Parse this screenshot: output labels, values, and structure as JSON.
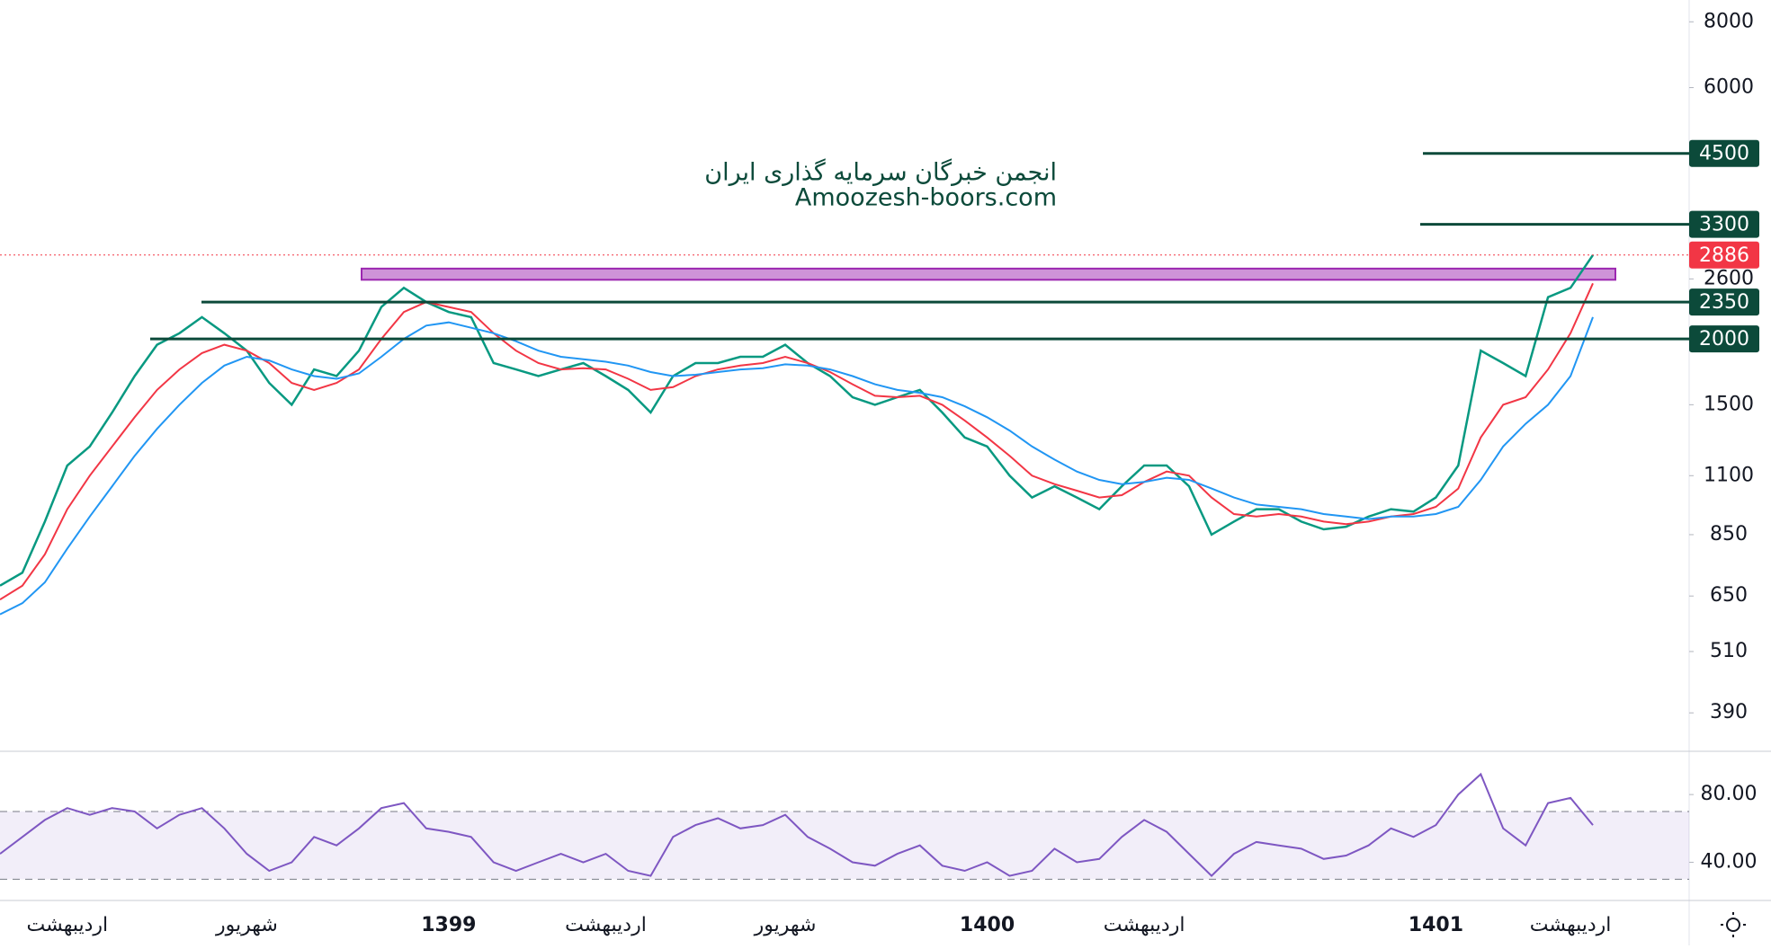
{
  "chart_data": [
    {
      "type": "line",
      "log_scale": true,
      "annotations": [
        "انجمن خبرگان سرمایه گذاری ایران",
        "Amoozesh-boors.com"
      ],
      "categories": [
        null,
        null,
        null,
        "اردیبهشت",
        null,
        null,
        null,
        null,
        null,
        null,
        null,
        "شهریور",
        null,
        null,
        null,
        null,
        null,
        null,
        null,
        null,
        "1399",
        null,
        null,
        null,
        null,
        null,
        null,
        "اردیبهشت",
        null,
        null,
        null,
        null,
        null,
        null,
        null,
        "شهریور",
        null,
        null,
        null,
        null,
        null,
        null,
        null,
        null,
        "1400",
        null,
        null,
        null,
        null,
        null,
        null,
        "اردیبهشت",
        null,
        null,
        null,
        null,
        null,
        null,
        null,
        null,
        null,
        null,
        null,
        null,
        "1401",
        null,
        null,
        null,
        null,
        null,
        "اردیبهشت",
        null
      ],
      "series": [
        {
          "color": "#089981",
          "values": [
            680,
            720,
            900,
            1150,
            1250,
            1450,
            1700,
            1950,
            2050,
            2200,
            2050,
            1900,
            1650,
            1500,
            1750,
            1700,
            1900,
            2300,
            2500,
            2350,
            2250,
            2200,
            1800,
            1750,
            1700,
            1750,
            1800,
            1700,
            1600,
            1450,
            1700,
            1800,
            1800,
            1850,
            1850,
            1950,
            1800,
            1700,
            1550,
            1500,
            1550,
            1600,
            1450,
            1300,
            1250,
            1100,
            1000,
            1050,
            1000,
            950,
            1050,
            1150,
            1150,
            1050,
            850,
            900,
            950,
            950,
            900,
            870,
            880,
            920,
            950,
            940,
            1000,
            1150,
            1900,
            1800,
            1700,
            2400,
            2500,
            2886
          ]
        },
        {
          "color": "#f23645",
          "values": [
            640,
            680,
            780,
            950,
            1100,
            1250,
            1420,
            1600,
            1750,
            1880,
            1950,
            1900,
            1800,
            1650,
            1600,
            1650,
            1750,
            2000,
            2250,
            2350,
            2300,
            2250,
            2050,
            1900,
            1800,
            1750,
            1760,
            1750,
            1680,
            1600,
            1620,
            1700,
            1750,
            1780,
            1800,
            1850,
            1800,
            1730,
            1640,
            1560,
            1550,
            1560,
            1500,
            1400,
            1300,
            1200,
            1100,
            1060,
            1030,
            1000,
            1010,
            1070,
            1120,
            1100,
            1000,
            930,
            920,
            930,
            920,
            900,
            890,
            900,
            920,
            930,
            960,
            1040,
            1300,
            1500,
            1550,
            1750,
            2050,
            2550
          ]
        },
        {
          "color": "#2196f3",
          "values": [
            600,
            630,
            690,
            800,
            920,
            1050,
            1200,
            1350,
            1500,
            1650,
            1780,
            1850,
            1820,
            1750,
            1700,
            1680,
            1720,
            1850,
            2000,
            2120,
            2150,
            2100,
            2050,
            1980,
            1900,
            1850,
            1830,
            1810,
            1780,
            1730,
            1700,
            1710,
            1730,
            1750,
            1760,
            1790,
            1780,
            1750,
            1700,
            1640,
            1600,
            1580,
            1550,
            1490,
            1420,
            1340,
            1250,
            1180,
            1120,
            1080,
            1060,
            1070,
            1090,
            1080,
            1040,
            1000,
            970,
            960,
            950,
            930,
            920,
            910,
            920,
            920,
            930,
            960,
            1080,
            1250,
            1380,
            1500,
            1700,
            2200
          ]
        }
      ],
      "ylim": [
        331,
        8800
      ],
      "yticks": [
        390,
        510,
        650,
        850,
        1100,
        1500,
        2600,
        6000,
        8000
      ],
      "levels": [
        2000,
        2350,
        3300,
        4500
      ],
      "level_color": "#0c4a3a",
      "zone": [
        2590,
        2720
      ]
    },
    {
      "type": "line",
      "color": "#7e57c2",
      "values": [
        45,
        55,
        65,
        72,
        68,
        72,
        70,
        60,
        68,
        72,
        60,
        45,
        35,
        40,
        55,
        50,
        60,
        72,
        75,
        60,
        58,
        55,
        40,
        35,
        40,
        45,
        40,
        45,
        35,
        32,
        55,
        62,
        66,
        60,
        62,
        68,
        55,
        48,
        40,
        38,
        45,
        50,
        38,
        35,
        40,
        32,
        35,
        48,
        40,
        42,
        55,
        65,
        58,
        45,
        32,
        45,
        52,
        50,
        48,
        42,
        44,
        50,
        60,
        55,
        62,
        80,
        92,
        60,
        50,
        75,
        78,
        62
      ],
      "ylim": [
        18,
        105
      ],
      "yticks": [
        {
          "value": 40,
          "label": "40.00"
        },
        {
          "value": 80,
          "label": "80.00"
        }
      ],
      "bands": [
        30,
        70
      ]
    }
  ]
}
